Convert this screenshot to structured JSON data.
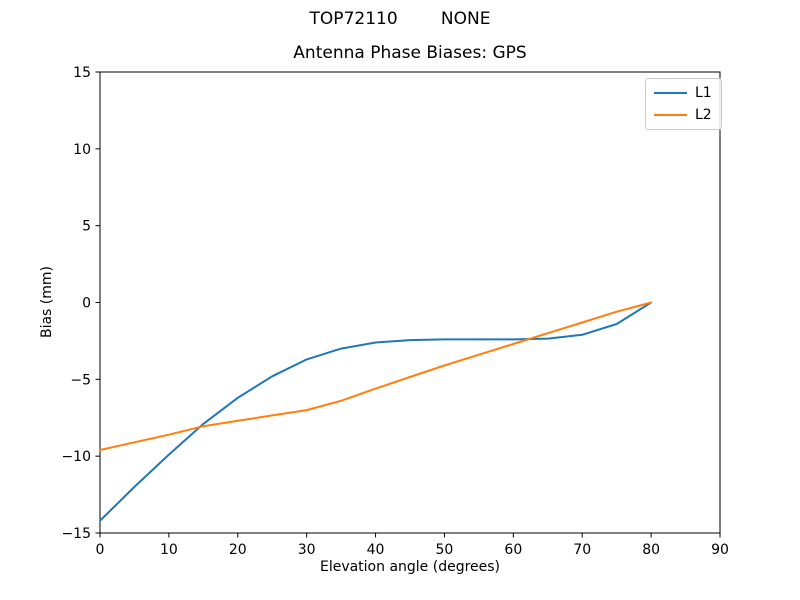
{
  "figure": {
    "suptitle": "TOP72110        NONE",
    "background_color": "#ffffff",
    "text_color": "#000000"
  },
  "chart_data": {
    "type": "line",
    "title": "Antenna Phase Biases: GPS",
    "xlabel": "Elevation angle (degrees)",
    "ylabel": "Bias (mm)",
    "xlim": [
      0,
      90
    ],
    "ylim": [
      -15,
      15
    ],
    "xticks": [
      0,
      10,
      20,
      30,
      40,
      50,
      60,
      70,
      80,
      90
    ],
    "xtick_labels": [
      "0",
      "10",
      "20",
      "30",
      "40",
      "50",
      "60",
      "70",
      "80",
      "90"
    ],
    "yticks": [
      -15,
      -10,
      -5,
      0,
      5,
      10,
      15
    ],
    "ytick_labels": [
      "−15",
      "−10",
      "−5",
      "0",
      "5",
      "10",
      "15"
    ],
    "grid": false,
    "legend": {
      "position": "upper right",
      "entries": [
        "L1",
        "L2"
      ]
    },
    "series": [
      {
        "name": "L1",
        "color": "#1f77b4",
        "x": [
          0,
          5,
          10,
          15,
          20,
          25,
          30,
          35,
          40,
          45,
          50,
          55,
          60,
          65,
          70,
          75,
          80
        ],
        "y": [
          -14.2,
          -12.0,
          -9.9,
          -7.9,
          -6.2,
          -4.8,
          -3.7,
          -3.0,
          -2.6,
          -2.45,
          -2.4,
          -2.4,
          -2.4,
          -2.35,
          -2.1,
          -1.4,
          0.0
        ]
      },
      {
        "name": "L2",
        "color": "#ff7f0e",
        "x": [
          0,
          5,
          10,
          15,
          20,
          25,
          30,
          35,
          40,
          45,
          50,
          55,
          60,
          65,
          70,
          75,
          80
        ],
        "y": [
          -9.6,
          -9.1,
          -8.6,
          -8.05,
          -7.7,
          -7.35,
          -7.0,
          -6.4,
          -5.6,
          -4.85,
          -4.1,
          -3.4,
          -2.7,
          -2.0,
          -1.3,
          -0.6,
          0.0
        ]
      }
    ]
  }
}
